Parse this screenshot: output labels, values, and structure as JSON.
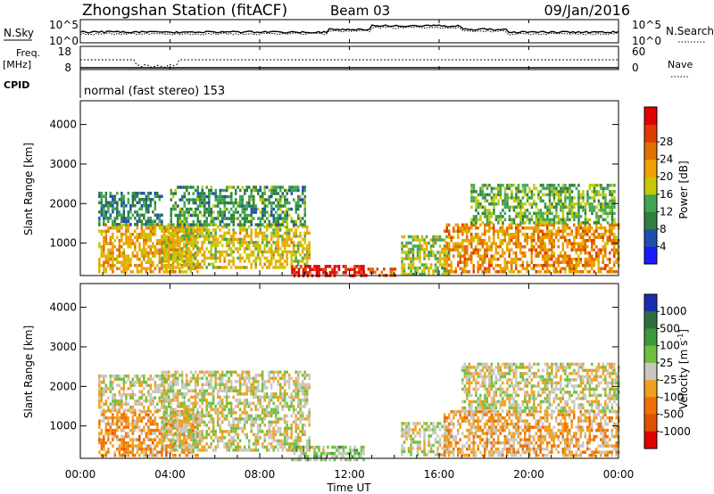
{
  "header": {
    "station": "Zhongshan Station (fitACF)",
    "beam": "Beam 03",
    "date": "09/Jan/2016"
  },
  "noise_panel": {
    "left_label": "N.Sky",
    "right_label": "N.Search",
    "ticks_left": [
      "10^5",
      "10^0"
    ],
    "ticks_right": [
      "10^5",
      "10^0"
    ]
  },
  "freq_panel": {
    "left_label_1": "Freq.",
    "left_label_2": "[MHz]",
    "right_label": "Nave",
    "ticks_left": [
      "18",
      "8"
    ],
    "ticks_right": [
      "60",
      "0"
    ]
  },
  "cpid": {
    "label": "CPID",
    "text": "normal (fast stereo) 153"
  },
  "axes": {
    "xlabel": "Time UT",
    "ylabel": "Slant Range [km]",
    "xticks": [
      "00:00",
      "04:00",
      "08:00",
      "12:00",
      "16:00",
      "20:00",
      "00:00"
    ],
    "yticks": [
      "1000",
      "2000",
      "3000",
      "4000"
    ]
  },
  "power_scale": {
    "label": "Power [dB]",
    "ticks": [
      "4",
      "8",
      "12",
      "16",
      "20",
      "24",
      "28"
    ],
    "colors": [
      "#1a1aff",
      "#1f4eb0",
      "#2f7f3f",
      "#3fa64f",
      "#c8c800",
      "#f0a000",
      "#e07000",
      "#e03a00",
      "#e00000"
    ]
  },
  "velocity_scale": {
    "label": "Velocity [m s",
    "label_sup": "-1",
    "label_end": "]",
    "ticks": [
      "1000",
      "500",
      "100",
      "25",
      "-25",
      "-100",
      "-500",
      "-1000"
    ],
    "colors": [
      "#1a2fb0",
      "#2f6f3f",
      "#3a9a3a",
      "#70c040",
      "#c8c8c0",
      "#f0a020",
      "#f07000",
      "#e05000",
      "#e00000"
    ]
  },
  "chart_data": [
    {
      "type": "heatmap",
      "title": "Power",
      "xlabel": "Time UT",
      "ylabel": "Slant Range [km]",
      "xlim": [
        "00:00",
        "24:00"
      ],
      "ylim": [
        180,
        4600
      ],
      "colorbar": {
        "label": "Power [dB]",
        "range": [
          0,
          30
        ]
      },
      "regions": [
        {
          "t": [
            0.8,
            5.2
          ],
          "r": [
            250,
            1500
          ],
          "value": 18
        },
        {
          "t": [
            0.8,
            3.6
          ],
          "r": [
            1500,
            2300
          ],
          "value": 8
        },
        {
          "t": [
            3.6,
            10.2
          ],
          "r": [
            350,
            1450
          ],
          "value": 16
        },
        {
          "t": [
            4.0,
            10.0
          ],
          "r": [
            1450,
            2450
          ],
          "value": 10
        },
        {
          "t": [
            9.4,
            12.6
          ],
          "r": [
            180,
            450
          ],
          "value": 28
        },
        {
          "t": [
            12.4,
            14.0
          ],
          "r": [
            180,
            380
          ],
          "value": 24
        },
        {
          "t": [
            14.3,
            16.4
          ],
          "r": [
            250,
            1200
          ],
          "value": 14
        },
        {
          "t": [
            16.2,
            24.0
          ],
          "r": [
            250,
            1500
          ],
          "value": 20
        },
        {
          "t": [
            17.4,
            23.8
          ],
          "r": [
            1500,
            2500
          ],
          "value": 12
        }
      ]
    },
    {
      "type": "heatmap",
      "title": "Velocity",
      "xlabel": "Time UT",
      "ylabel": "Slant Range [km]",
      "xlim": [
        "00:00",
        "24:00"
      ],
      "ylim": [
        180,
        4600
      ],
      "colorbar": {
        "label": "Velocity [m s-1]",
        "range": [
          -1000,
          1000
        ]
      },
      "regions": [
        {
          "t": [
            0.8,
            5.2
          ],
          "r": [
            250,
            1400
          ],
          "value": -300
        },
        {
          "t": [
            0.8,
            4.0
          ],
          "r": [
            1400,
            2300
          ],
          "value": 0
        },
        {
          "t": [
            3.6,
            10.2
          ],
          "r": [
            400,
            2400
          ],
          "value": 0
        },
        {
          "t": [
            9.4,
            12.6
          ],
          "r": [
            180,
            500
          ],
          "value": 150
        },
        {
          "t": [
            14.3,
            16.4
          ],
          "r": [
            250,
            1100
          ],
          "value": 40
        },
        {
          "t": [
            16.2,
            24.0
          ],
          "r": [
            250,
            1400
          ],
          "value": -200
        },
        {
          "t": [
            17.0,
            24.0
          ],
          "r": [
            1400,
            2600
          ],
          "value": 0
        }
      ]
    }
  ]
}
